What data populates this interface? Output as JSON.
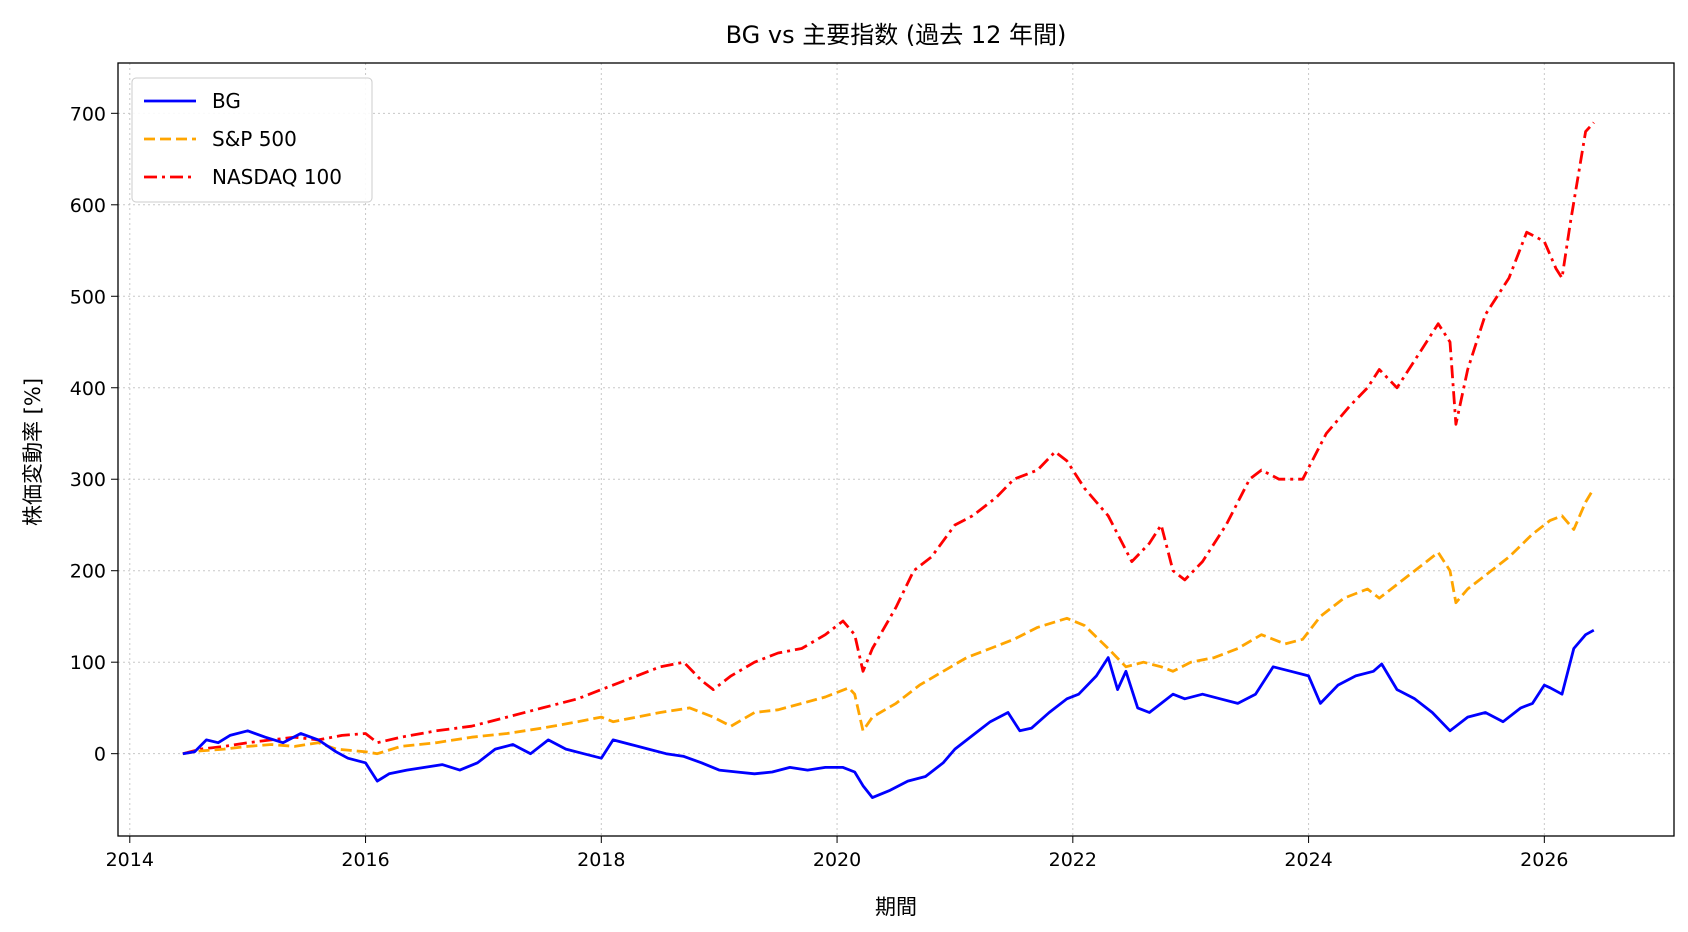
{
  "chart_data": {
    "type": "line",
    "title": "BG vs 主要指数 (過去 12 年間)",
    "xlabel": "期間",
    "ylabel": "株価変動率 [%]",
    "xlim": [
      2013.9,
      2027.1
    ],
    "ylim": [
      -90,
      755
    ],
    "xticks": [
      2014,
      2016,
      2018,
      2020,
      2022,
      2024,
      2026
    ],
    "yticks": [
      0,
      100,
      200,
      300,
      400,
      500,
      600,
      700
    ],
    "grid": true,
    "legend_position": "top-left",
    "series": [
      {
        "name": "BG",
        "color": "#0000ff",
        "style": "solid",
        "x": [
          2014.45,
          2014.55,
          2014.65,
          2014.75,
          2014.85,
          2015.0,
          2015.15,
          2015.3,
          2015.45,
          2015.6,
          2015.75,
          2015.85,
          2016.0,
          2016.1,
          2016.2,
          2016.35,
          2016.5,
          2016.65,
          2016.8,
          2016.95,
          2017.1,
          2017.25,
          2017.4,
          2017.55,
          2017.7,
          2017.85,
          2018.0,
          2018.1,
          2018.25,
          2018.4,
          2018.55,
          2018.7,
          2018.85,
          2019.0,
          2019.15,
          2019.3,
          2019.45,
          2019.6,
          2019.75,
          2019.9,
          2020.05,
          2020.15,
          2020.22,
          2020.3,
          2020.45,
          2020.6,
          2020.75,
          2020.9,
          2021.0,
          2021.15,
          2021.3,
          2021.45,
          2021.55,
          2021.65,
          2021.8,
          2021.95,
          2022.05,
          2022.2,
          2022.3,
          2022.38,
          2022.45,
          2022.55,
          2022.65,
          2022.75,
          2022.85,
          2022.95,
          2023.1,
          2023.25,
          2023.4,
          2023.55,
          2023.7,
          2023.85,
          2024.0,
          2024.1,
          2024.25,
          2024.4,
          2024.55,
          2024.62,
          2024.75,
          2024.9,
          2025.05,
          2025.2,
          2025.35,
          2025.5,
          2025.65,
          2025.8,
          2025.9,
          2026.0,
          2026.05,
          2026.15,
          2026.25,
          2026.35,
          2026.42
        ],
        "y": [
          0,
          2,
          15,
          12,
          20,
          25,
          18,
          12,
          22,
          15,
          2,
          -5,
          -10,
          -30,
          -22,
          -18,
          -15,
          -12,
          -18,
          -10,
          5,
          10,
          0,
          15,
          5,
          0,
          -5,
          15,
          10,
          5,
          0,
          -3,
          -10,
          -18,
          -20,
          -22,
          -20,
          -15,
          -18,
          -15,
          -15,
          -20,
          -35,
          -48,
          -40,
          -30,
          -25,
          -10,
          5,
          20,
          35,
          45,
          25,
          28,
          45,
          60,
          65,
          85,
          105,
          70,
          90,
          50,
          45,
          55,
          65,
          60,
          65,
          60,
          55,
          65,
          95,
          90,
          85,
          55,
          75,
          85,
          90,
          98,
          70,
          60,
          45,
          25,
          40,
          45,
          35,
          50,
          55,
          75,
          72,
          65,
          115,
          130,
          135
        ]
      },
      {
        "name": "S&P 500",
        "color": "#ffa500",
        "style": "dashed",
        "x": [
          2014.45,
          2014.6,
          2014.8,
          2015.0,
          2015.2,
          2015.4,
          2015.6,
          2015.75,
          2016.0,
          2016.1,
          2016.3,
          2016.6,
          2016.9,
          2017.2,
          2017.5,
          2017.8,
          2018.0,
          2018.1,
          2018.3,
          2018.5,
          2018.75,
          2018.95,
          2019.1,
          2019.3,
          2019.5,
          2019.7,
          2019.9,
          2020.1,
          2020.15,
          2020.22,
          2020.3,
          2020.5,
          2020.7,
          2020.9,
          2021.1,
          2021.3,
          2021.5,
          2021.7,
          2021.95,
          2022.1,
          2022.3,
          2022.45,
          2022.6,
          2022.75,
          2022.85,
          2023.0,
          2023.2,
          2023.4,
          2023.6,
          2023.8,
          2023.95,
          2024.1,
          2024.3,
          2024.5,
          2024.6,
          2024.8,
          2025.0,
          2025.1,
          2025.2,
          2025.25,
          2025.35,
          2025.5,
          2025.7,
          2025.9,
          2026.05,
          2026.15,
          2026.25,
          2026.35,
          2026.42
        ],
        "y": [
          0,
          3,
          5,
          8,
          10,
          8,
          12,
          5,
          2,
          0,
          8,
          12,
          18,
          22,
          28,
          35,
          40,
          35,
          40,
          45,
          50,
          40,
          30,
          45,
          48,
          55,
          62,
          72,
          65,
          25,
          40,
          55,
          75,
          90,
          105,
          115,
          125,
          138,
          148,
          140,
          115,
          95,
          100,
          95,
          90,
          100,
          105,
          115,
          130,
          120,
          125,
          150,
          170,
          180,
          170,
          190,
          210,
          220,
          200,
          165,
          180,
          195,
          215,
          240,
          255,
          260,
          245,
          275,
          290
        ]
      },
      {
        "name": "NASDAQ 100",
        "color": "#ff0000",
        "style": "dashdot",
        "x": [
          2014.45,
          2014.6,
          2014.8,
          2015.0,
          2015.2,
          2015.4,
          2015.6,
          2015.8,
          2016.0,
          2016.1,
          2016.3,
          2016.6,
          2016.9,
          2017.2,
          2017.5,
          2017.8,
          2018.0,
          2018.2,
          2018.5,
          2018.7,
          2018.85,
          2018.95,
          2019.1,
          2019.3,
          2019.5,
          2019.7,
          2019.9,
          2020.05,
          2020.15,
          2020.22,
          2020.3,
          2020.5,
          2020.65,
          2020.8,
          2021.0,
          2021.15,
          2021.35,
          2021.5,
          2021.7,
          2021.85,
          2021.95,
          2022.1,
          2022.3,
          2022.5,
          2022.65,
          2022.75,
          2022.85,
          2022.95,
          2023.1,
          2023.3,
          2023.5,
          2023.6,
          2023.75,
          2023.95,
          2024.15,
          2024.35,
          2024.5,
          2024.6,
          2024.75,
          2024.95,
          2025.1,
          2025.2,
          2025.25,
          2025.35,
          2025.5,
          2025.7,
          2025.85,
          2026.0,
          2026.1,
          2026.15,
          2026.22,
          2026.35,
          2026.42
        ],
        "y": [
          0,
          5,
          8,
          12,
          15,
          18,
          15,
          20,
          22,
          12,
          18,
          25,
          30,
          40,
          50,
          60,
          70,
          80,
          95,
          100,
          80,
          70,
          85,
          100,
          110,
          115,
          130,
          145,
          130,
          90,
          115,
          160,
          200,
          215,
          250,
          260,
          280,
          300,
          310,
          330,
          320,
          290,
          260,
          210,
          230,
          250,
          200,
          190,
          210,
          250,
          300,
          310,
          300,
          300,
          350,
          380,
          400,
          420,
          400,
          440,
          470,
          450,
          360,
          420,
          480,
          520,
          570,
          560,
          530,
          520,
          580,
          680,
          690
        ]
      }
    ]
  }
}
